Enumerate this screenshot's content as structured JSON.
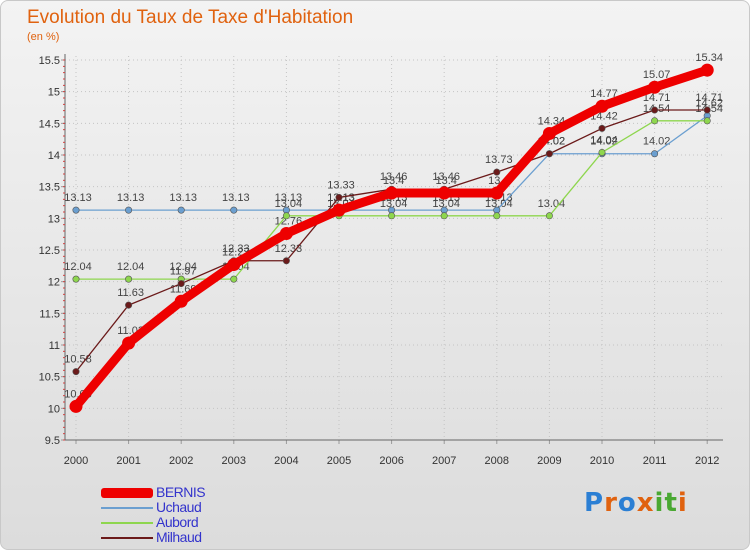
{
  "title": "Evolution du Taux de Taxe d'Habitation",
  "unit": "(en %)",
  "logo": {
    "text": "Proxiti",
    "letters": [
      "P",
      "r",
      "o",
      "x",
      "i",
      "t",
      "i"
    ],
    "colors": [
      "#2b7fd4",
      "#e0620f",
      "#2b7fd4",
      "#e0620f",
      "#49a832",
      "#49a832",
      "#e0620f"
    ]
  },
  "chart_data": {
    "type": "line",
    "title": "Evolution du Taux de Taxe d'Habitation",
    "ylabel": "(en %)",
    "xlabel": "",
    "ylim": [
      9.5,
      15.5
    ],
    "yticks": [
      "9.5",
      "10",
      "10.5",
      "11",
      "11.5",
      "12",
      "12.5",
      "13",
      "13.5",
      "14",
      "14.5",
      "15",
      "15.5"
    ],
    "categories": [
      "2000",
      "2001",
      "2002",
      "2003",
      "2004",
      "2005",
      "2006",
      "2007",
      "2008",
      "2009",
      "2010",
      "2011",
      "2012"
    ],
    "series": [
      {
        "name": "BERNIS",
        "color": "#ee0000",
        "values": [
          10.03,
          11.03,
          11.69,
          12.27,
          12.76,
          13.13,
          13.4,
          13.4,
          13.4,
          14.34,
          14.77,
          15.07,
          15.34
        ],
        "labels": [
          "10.03",
          "11.03",
          "11.69",
          "12.27",
          "12.76",
          "13.13",
          "13.4",
          "13.4",
          "13.4",
          "14.34",
          "14.77",
          "15.07",
          "15.34"
        ]
      },
      {
        "name": "Uchaud",
        "color": "#6b9fd0",
        "values": [
          13.13,
          13.13,
          13.13,
          13.13,
          13.13,
          13.13,
          13.13,
          13.13,
          13.13,
          14.02,
          14.02,
          14.02,
          14.62
        ],
        "labels": [
          "13.13",
          "13.13",
          "13.13",
          "13.13",
          "13.13",
          "13.13",
          "13.13",
          "13.13",
          "13.13",
          "14.02",
          "14.02",
          "14.02",
          "14.62"
        ]
      },
      {
        "name": "Aubord",
        "color": "#8ed64e",
        "values": [
          12.04,
          12.04,
          12.04,
          12.04,
          13.04,
          13.04,
          13.04,
          13.04,
          13.04,
          13.04,
          14.04,
          14.54,
          14.54
        ],
        "labels": [
          "12.04",
          "12.04",
          "12.04",
          "12.04",
          "13.04",
          "13.04",
          "13.04",
          "13.04",
          "13.04",
          "13.04",
          "14.04",
          "14.54",
          "14.54"
        ]
      },
      {
        "name": "Milhaud",
        "color": "#6b1a1a",
        "values": [
          10.58,
          11.63,
          11.97,
          12.33,
          12.33,
          13.33,
          13.46,
          13.46,
          13.73,
          14.02,
          14.42,
          14.71,
          14.71
        ],
        "labels": [
          "10.58",
          "11.63",
          "11.97",
          "12.33",
          "12.33",
          "13.33",
          "13.46",
          "13.46",
          "13.73",
          "14.02",
          "14.42",
          "14.71",
          "14.71"
        ]
      }
    ]
  },
  "legend": [
    {
      "label": "BERNIS",
      "color": "#ee0000"
    },
    {
      "label": "Uchaud",
      "color": "#6b9fd0"
    },
    {
      "label": "Aubord",
      "color": "#8ed64e"
    },
    {
      "label": "Milhaud",
      "color": "#6b1a1a"
    }
  ]
}
